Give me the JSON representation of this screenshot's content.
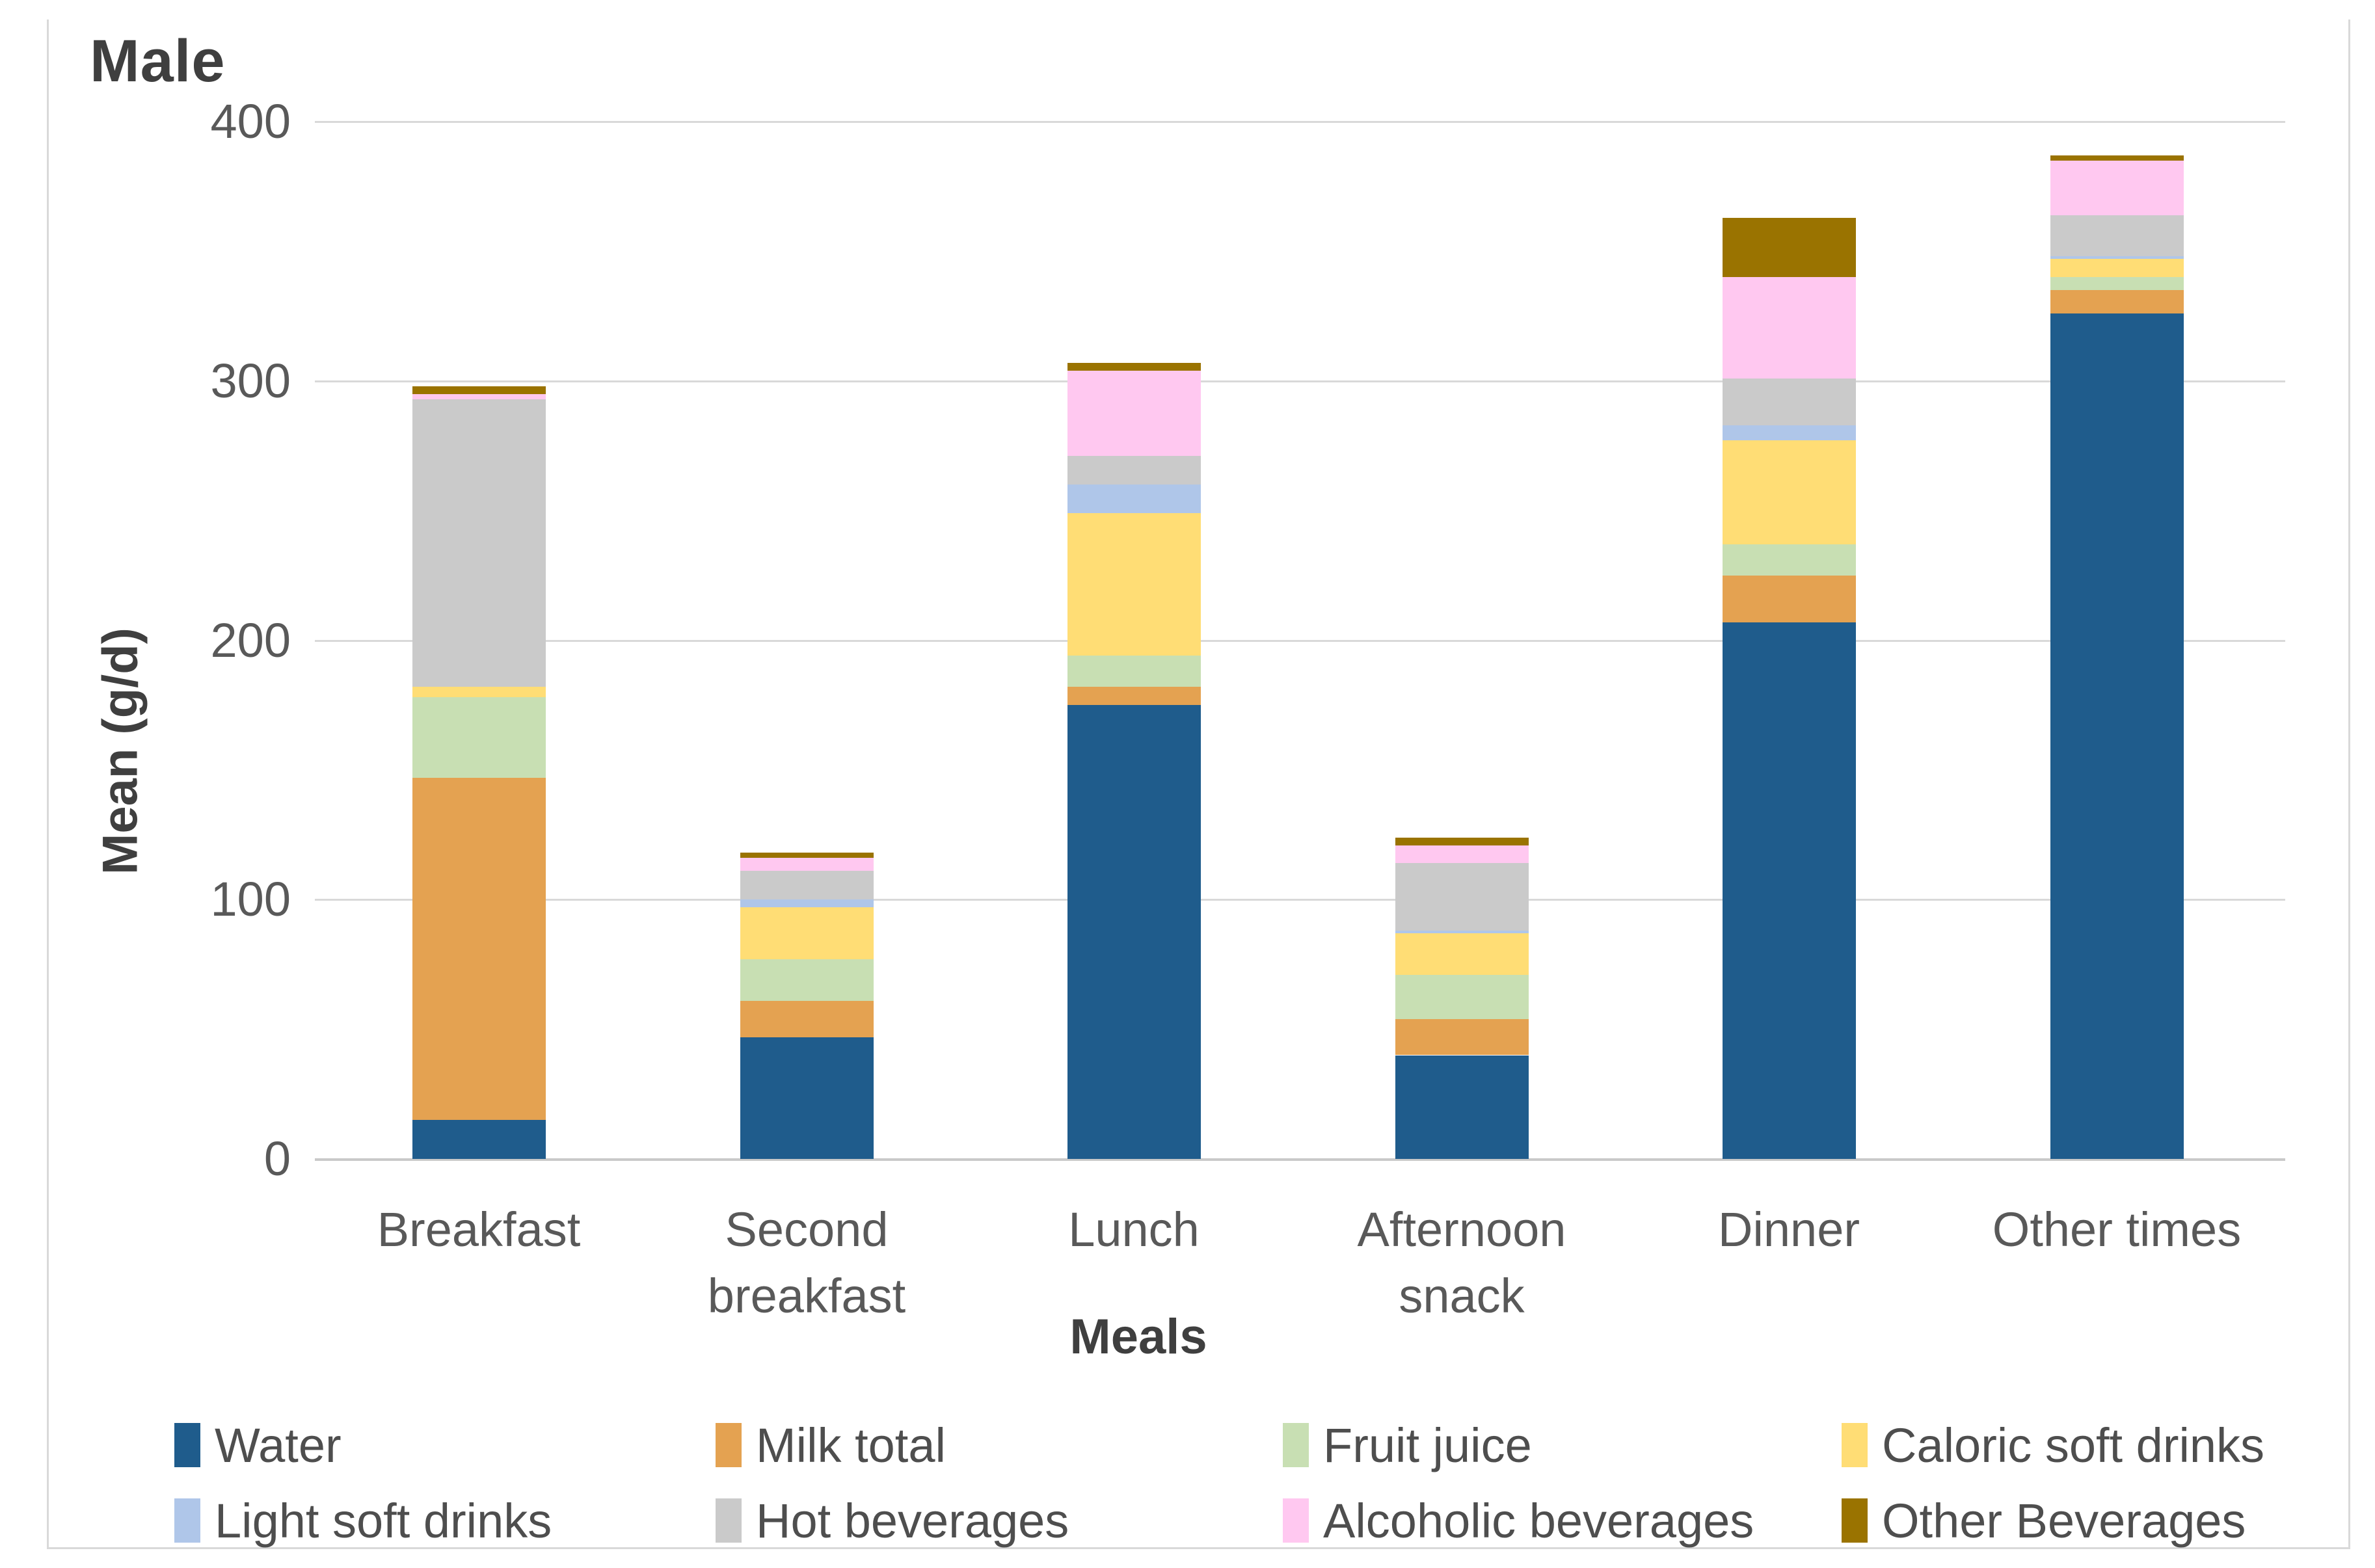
{
  "figure": {
    "title": "Male"
  },
  "chart_data": {
    "type": "bar",
    "stacked": true,
    "title": "Male",
    "xlabel": "Meals",
    "ylabel": "Mean (g/d)",
    "ylim": [
      0,
      400
    ],
    "yticks": [
      0,
      100,
      200,
      300,
      400
    ],
    "grid": "horizontal",
    "legend_position": "bottom",
    "categories": [
      "Breakfast",
      "Second breakfast",
      "Lunch",
      "Afternoon snack",
      "Dinner",
      "Other times"
    ],
    "category_label_lines": [
      [
        "Breakfast"
      ],
      [
        "Second",
        "breakfast"
      ],
      [
        "Lunch"
      ],
      [
        "Afternoon",
        "snack"
      ],
      [
        "Dinner"
      ],
      [
        "Other times"
      ]
    ],
    "series": [
      {
        "name": "Water",
        "color": "#1F5C8C",
        "values": [
          15,
          47,
          175,
          40,
          207,
          326
        ]
      },
      {
        "name": "Milk total",
        "color": "#E4A251",
        "values": [
          132,
          14,
          7,
          14,
          18,
          9
        ]
      },
      {
        "name": "Fruit juice",
        "color": "#C8DFB3",
        "values": [
          31,
          16,
          12,
          17,
          12,
          5
        ]
      },
      {
        "name": "Caloric soft drinks",
        "color": "#FFDD75",
        "values": [
          4,
          20,
          55,
          16,
          40,
          7
        ]
      },
      {
        "name": "Light soft drinks",
        "color": "#AFC6E9",
        "values": [
          0,
          3,
          11,
          1,
          6,
          1
        ]
      },
      {
        "name": "Hot beverages",
        "color": "#CACACA",
        "values": [
          111,
          11,
          11,
          26,
          18,
          16
        ]
      },
      {
        "name": "Alcoholic beverages",
        "color": "#FFC8F0",
        "values": [
          2,
          5,
          33,
          7,
          39,
          21
        ]
      },
      {
        "name": "Other Beverages",
        "color": "#9A7300",
        "values": [
          3,
          2,
          3,
          3,
          23,
          2
        ]
      }
    ]
  },
  "colors": {
    "gridline": "#D9D9D9",
    "border": "#D9D9D9",
    "tick_text": "#595959",
    "title_text": "#3F3F3F"
  }
}
